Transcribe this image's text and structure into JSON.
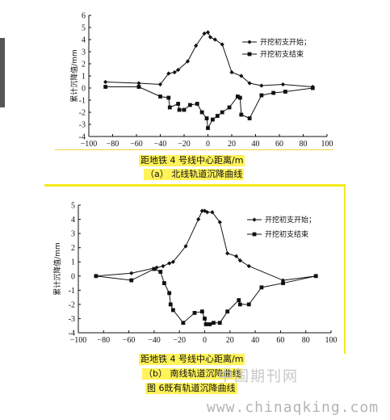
{
  "chart_data": [
    {
      "type": "line",
      "panel": "a",
      "ylabel": "累计沉降值/mm",
      "xlabel": "距地铁 4 号线中心距离/m",
      "caption": "（a） 北线轨道沉降曲线",
      "xlim": [
        -100,
        100
      ],
      "ylim": [
        -4,
        6
      ],
      "xticks": [
        -100,
        -80,
        -60,
        -40,
        -20,
        0,
        20,
        40,
        60,
        80,
        100
      ],
      "yticks": [
        -4,
        -3,
        -2,
        -1,
        0,
        1,
        2,
        3,
        4,
        5,
        6
      ],
      "legend_position": "top-right",
      "series": [
        {
          "name": "开挖初支开始；",
          "marker": "diamond",
          "x": [
            -86,
            -58,
            -40,
            -33,
            -28,
            -25,
            -17,
            -10,
            -3,
            0,
            2,
            6,
            12,
            20,
            28,
            35,
            45,
            63,
            88
          ],
          "y": [
            0.5,
            0.4,
            0.3,
            1.2,
            1.3,
            1.5,
            2.2,
            3.5,
            4.5,
            4.6,
            4.2,
            4.0,
            3.6,
            1.3,
            1.0,
            0.4,
            0.2,
            0.3,
            0.1
          ]
        },
        {
          "name": "开挖初支结束",
          "marker": "square",
          "x": [
            -86,
            -58,
            -40,
            -33,
            -32,
            -25,
            -24,
            -20,
            -15,
            -9,
            -5,
            -1,
            0,
            4,
            8,
            12,
            18,
            25,
            27,
            28,
            35,
            45,
            55,
            65,
            88
          ],
          "y": [
            0.1,
            0.1,
            -0.7,
            -0.8,
            -1.6,
            -1.3,
            -1.8,
            -1.8,
            -1.4,
            -1.3,
            -2.0,
            -2.5,
            -3.3,
            -2.6,
            -2.3,
            -2.0,
            -1.6,
            -0.7,
            -0.8,
            -2.2,
            -2.5,
            -0.6,
            -0.4,
            -0.3,
            0.0
          ]
        }
      ]
    },
    {
      "type": "line",
      "panel": "b",
      "ylabel": "累计沉降值/mm",
      "xlabel": "距地铁 4 号线中心距离/m",
      "caption": "（b） 南线轨道沉降曲线",
      "xlim": [
        -100,
        100
      ],
      "ylim": [
        -4,
        5
      ],
      "xticks": [
        -100,
        -80,
        -60,
        -40,
        -20,
        0,
        20,
        40,
        60,
        80,
        100
      ],
      "yticks": [
        -4,
        -3,
        -2,
        -1,
        0,
        1,
        2,
        3,
        4,
        5
      ],
      "legend_position": "top-right",
      "series": [
        {
          "name": "开挖初支开始；",
          "marker": "diamond",
          "x": [
            -86,
            -58,
            -38,
            -33,
            -28,
            -25,
            -15,
            -5,
            -2,
            0,
            2,
            6,
            12,
            18,
            25,
            28,
            35,
            62,
            88
          ],
          "y": [
            0.0,
            0.2,
            0.6,
            0.7,
            0.9,
            1.0,
            2.1,
            4.0,
            4.6,
            4.6,
            4.5,
            4.5,
            3.8,
            1.6,
            1.4,
            1.1,
            0.7,
            -0.3,
            0.0
          ]
        },
        {
          "name": "开挖初支结束",
          "marker": "square",
          "x": [
            -86,
            -58,
            -40,
            -35,
            -32,
            -28,
            -27,
            -25,
            -17,
            -8,
            -2,
            0,
            1,
            4,
            7,
            12,
            18,
            27,
            28,
            35,
            45,
            62,
            88
          ],
          "y": [
            0.0,
            -0.3,
            0.5,
            0.3,
            -0.5,
            -1.2,
            -2.0,
            -2.4,
            -3.3,
            -2.6,
            -2.5,
            -3.0,
            -3.4,
            -3.4,
            -3.3,
            -3.3,
            -2.5,
            -1.7,
            -2.0,
            -2.0,
            -0.8,
            -0.5,
            0.0
          ]
        }
      ]
    }
  ],
  "figure_caption": "图 6既有轨道沉降曲线",
  "watermark": {
    "text_cn": "中国期刊网",
    "url": "www.chinaqking.com"
  }
}
